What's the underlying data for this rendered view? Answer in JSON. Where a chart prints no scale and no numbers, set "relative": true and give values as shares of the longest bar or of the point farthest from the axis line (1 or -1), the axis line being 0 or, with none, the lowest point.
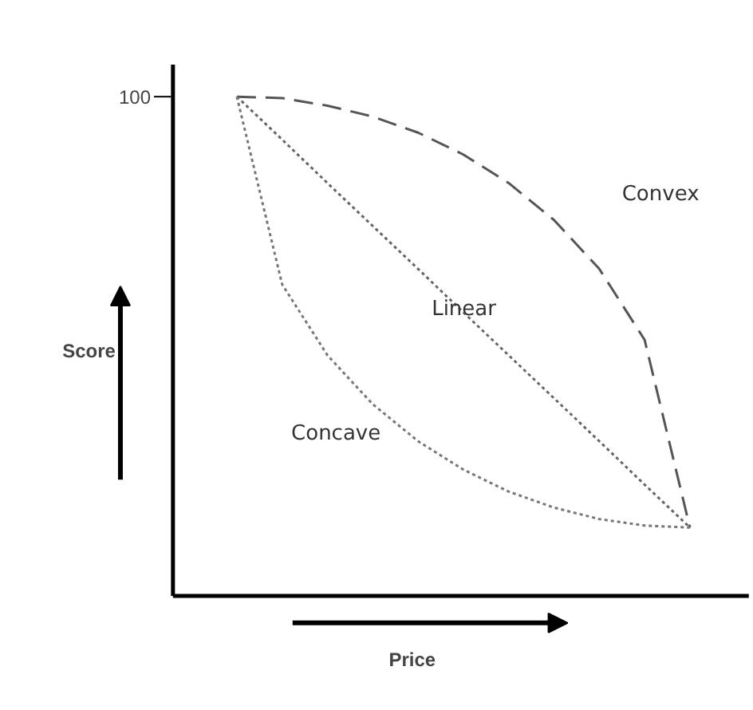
{
  "chart_data": {
    "type": "line",
    "relative": true,
    "xlabel": "Price",
    "ylabel": "Score",
    "annotations": [
      "100"
    ],
    "categories": [
      null,
      null,
      null,
      null,
      null,
      null,
      null,
      null,
      null,
      null,
      null
    ],
    "grid": false,
    "legend": false,
    "series": [
      {
        "name": "Convex",
        "color": "#555555",
        "line_style": "dashed",
        "values": [
          1.0,
          0.997,
          0.982,
          0.96,
          0.928,
          0.884,
          0.827,
          0.753,
          0.655,
          0.513,
          0.137
        ]
      },
      {
        "name": "Linear",
        "color": "#666666",
        "line_style": "dotted",
        "values": [
          1.0,
          0.914,
          0.827,
          0.741,
          0.655,
          0.568,
          0.482,
          0.396,
          0.31,
          0.223,
          0.137
        ]
      },
      {
        "name": "Concave",
        "color": "#777777",
        "line_style": "dotted",
        "values": [
          1.0,
          0.624,
          0.482,
          0.384,
          0.31,
          0.253,
          0.209,
          0.177,
          0.154,
          0.141,
          0.137
        ]
      }
    ]
  }
}
